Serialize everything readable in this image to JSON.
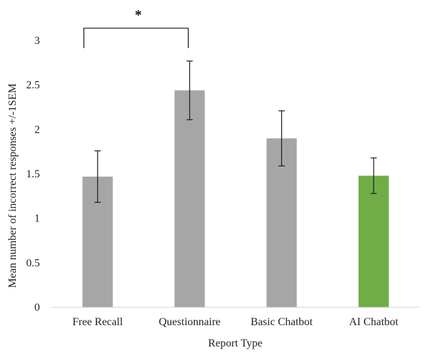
{
  "chart_data": {
    "type": "bar",
    "title": "",
    "xlabel": "Report Type",
    "ylabel": "Mean number of incorrect responses +/-1SEM",
    "ylim": [
      0,
      3
    ],
    "yticks": [
      0,
      0.5,
      1,
      1.5,
      2,
      2.5,
      3
    ],
    "ytick_labels": [
      "0",
      "0.5",
      "1",
      "1.5",
      "2",
      "2.5",
      "3"
    ],
    "grid": false,
    "categories": [
      "Free Recall",
      "Questionnaire",
      "Basic Chatbot",
      "AI Chatbot"
    ],
    "values": [
      1.47,
      2.44,
      1.9,
      1.48
    ],
    "error": [
      0.29,
      0.33,
      0.31,
      0.2
    ],
    "bar_colors": [
      "#a6a6a6",
      "#a6a6a6",
      "#a6a6a6",
      "#70ad47"
    ],
    "significance": {
      "between": [
        0,
        1
      ],
      "label": "*"
    }
  }
}
